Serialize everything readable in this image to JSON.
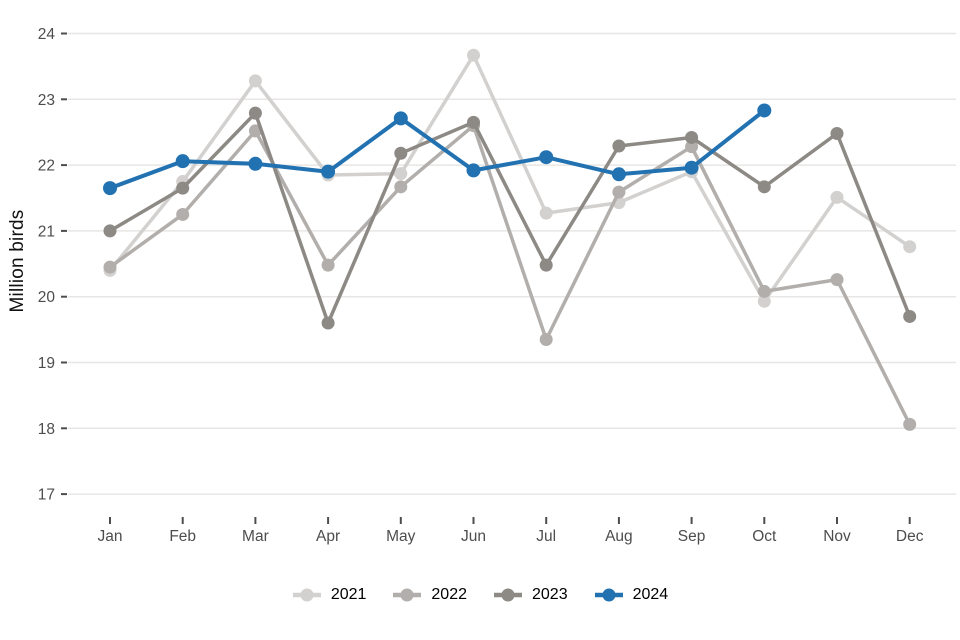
{
  "chart_data": {
    "type": "line",
    "title": "",
    "ylabel": "Million birds",
    "xlabel": "",
    "categories": [
      "Jan",
      "Feb",
      "Mar",
      "Apr",
      "May",
      "Jun",
      "Jul",
      "Aug",
      "Sep",
      "Oct",
      "Nov",
      "Dec"
    ],
    "series": [
      {
        "name": "2021",
        "color": "#d3d1cf",
        "values": [
          20.4,
          21.75,
          23.28,
          21.85,
          21.87,
          23.67,
          21.27,
          21.43,
          21.9,
          19.93,
          21.51,
          20.76
        ]
      },
      {
        "name": "2022",
        "color": "#b2aeab",
        "values": [
          20.45,
          21.25,
          22.52,
          20.48,
          21.67,
          22.6,
          19.35,
          21.59,
          22.28,
          20.08,
          20.26,
          18.06
        ]
      },
      {
        "name": "2023",
        "color": "#8d8984",
        "values": [
          21.0,
          21.65,
          22.79,
          19.6,
          22.18,
          22.65,
          20.48,
          22.29,
          22.42,
          21.67,
          22.48,
          19.7
        ]
      },
      {
        "name": "2024",
        "color": "#2272b2",
        "values": [
          21.65,
          22.06,
          22.02,
          21.9,
          22.71,
          21.92,
          22.12,
          21.86,
          21.96,
          22.83,
          null,
          null
        ]
      }
    ],
    "ylim": [
      17,
      24
    ],
    "yticks": [
      17,
      18,
      19,
      20,
      21,
      22,
      23,
      24
    ],
    "grid": "horizontal",
    "legend_position": "bottom",
    "styles": {
      "grid_color": "#e8e6e4",
      "tick_color": "#4d4d4d",
      "tick_label_color": "#4d4d4d",
      "line_width_gray": 3.5,
      "line_width_accent": 4,
      "marker_radius": 6.5
    }
  }
}
